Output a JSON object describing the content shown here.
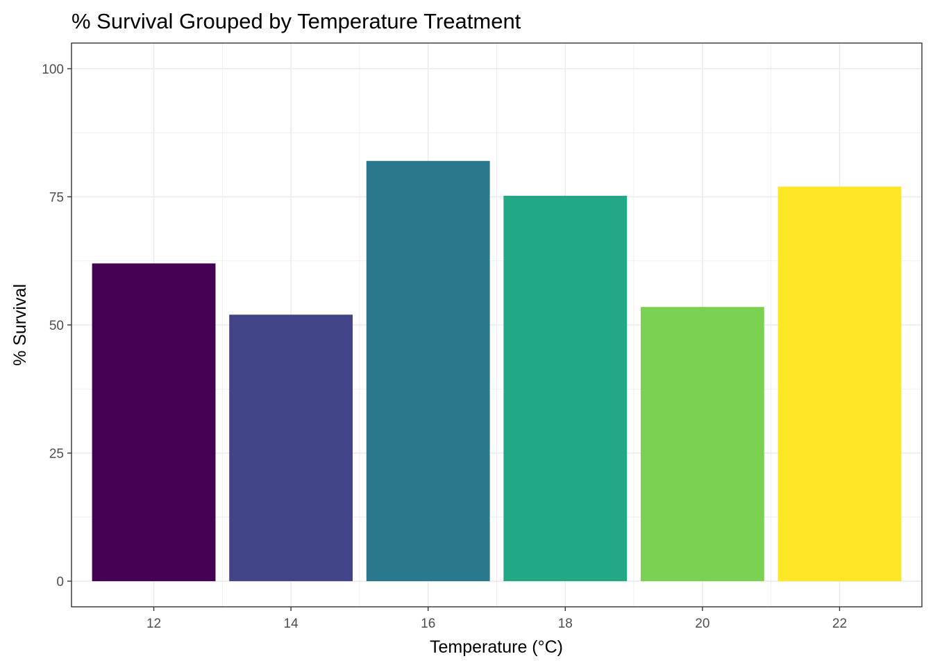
{
  "chart_data": {
    "type": "bar",
    "title": "% Survival Grouped by Temperature Treatment",
    "xlabel": "Temperature (°C)",
    "ylabel": "% Survival",
    "categories": [
      "12",
      "14",
      "16",
      "18",
      "20",
      "22"
    ],
    "x": [
      12,
      14,
      16,
      18,
      20,
      22
    ],
    "values": [
      62,
      52,
      82,
      75.2,
      53.5,
      77
    ],
    "colors": [
      "#440154",
      "#414487",
      "#2A788E",
      "#22A884",
      "#7AD151",
      "#FDE725"
    ],
    "xlim": [
      10.8,
      23.2
    ],
    "ylim": [
      -5,
      105
    ],
    "yticks": [
      0,
      25,
      50,
      75,
      100
    ],
    "xticks": [
      12,
      14,
      16,
      18,
      20,
      22
    ],
    "grid": true,
    "legend": "none",
    "theme": "bw"
  }
}
